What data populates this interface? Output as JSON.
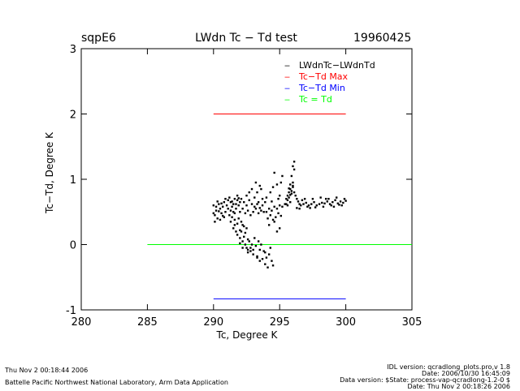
{
  "header": {
    "site": "sqpE6",
    "title": "LWdn Tc − Td test",
    "date": "19960425"
  },
  "chart_data": {
    "type": "scatter",
    "xlabel": "Tc, Degree K",
    "ylabel": "Tc−Td, Degree K",
    "xlim": [
      280,
      305
    ],
    "ylim": [
      -1,
      3
    ],
    "xticks": [
      280,
      285,
      290,
      295,
      300,
      305
    ],
    "yticks": [
      -1,
      0,
      1,
      2,
      3
    ],
    "legend": [
      {
        "label": "LWdnTc−LWdnTd",
        "color": "#000000",
        "marker": "‒"
      },
      {
        "label": "Tc−Td Max",
        "color": "#ff0000",
        "marker": "‒"
      },
      {
        "label": "Tc−Td Min",
        "color": "#0000ff",
        "marker": "‒"
      },
      {
        "label": "Tc = Td",
        "color": "#00ff00",
        "marker": "‒"
      }
    ],
    "legend_position": "top-right",
    "lines": [
      {
        "name": "Tc-Td Max",
        "color": "#ff0000",
        "x": [
          290,
          300
        ],
        "y": [
          2,
          2
        ]
      },
      {
        "name": "Tc-Td Min",
        "color": "#0000ff",
        "x": [
          290,
          300
        ],
        "y": [
          -0.83,
          -0.83
        ]
      },
      {
        "name": "Tc = Td",
        "color": "#00ff00",
        "x": [
          285,
          305
        ],
        "y": [
          0,
          0
        ]
      }
    ],
    "scatter_series": {
      "name": "LWdnTc-LWdnTd",
      "color": "#000000",
      "points": [
        [
          290.0,
          0.6
        ],
        [
          290.1,
          0.45
        ],
        [
          290.2,
          0.52
        ],
        [
          290.3,
          0.4
        ],
        [
          290.4,
          0.62
        ],
        [
          290.5,
          0.55
        ],
        [
          290.6,
          0.48
        ],
        [
          290.7,
          0.58
        ],
        [
          290.8,
          0.65
        ],
        [
          290.9,
          0.5
        ],
        [
          290.1,
          0.35
        ],
        [
          290.3,
          0.66
        ],
        [
          290.5,
          0.38
        ],
        [
          290.7,
          0.44
        ],
        [
          290.9,
          0.7
        ],
        [
          290.2,
          0.58
        ],
        [
          290.6,
          0.63
        ],
        [
          290.8,
          0.42
        ],
        [
          290.0,
          0.48
        ],
        [
          290.4,
          0.51
        ],
        [
          291.0,
          0.6
        ],
        [
          291.1,
          0.55
        ],
        [
          291.2,
          0.72
        ],
        [
          291.3,
          0.65
        ],
        [
          291.4,
          0.58
        ],
        [
          291.5,
          0.62
        ],
        [
          291.6,
          0.7
        ],
        [
          291.7,
          0.55
        ],
        [
          291.8,
          0.68
        ],
        [
          291.9,
          0.6
        ],
        [
          291.2,
          0.45
        ],
        [
          291.5,
          0.5
        ],
        [
          291.8,
          0.75
        ],
        [
          291.1,
          0.68
        ],
        [
          291.4,
          0.66
        ],
        [
          291.7,
          0.62
        ],
        [
          291.3,
          0.52
        ],
        [
          291.6,
          0.48
        ],
        [
          291.9,
          0.71
        ],
        [
          292.0,
          0.65
        ],
        [
          291.3,
          0.35
        ],
        [
          291.5,
          0.25
        ],
        [
          291.6,
          0.3
        ],
        [
          291.7,
          0.2
        ],
        [
          291.8,
          0.15
        ],
        [
          291.9,
          0.4
        ],
        [
          292.0,
          0.1
        ],
        [
          292.1,
          0.35
        ],
        [
          292.2,
          0.05
        ],
        [
          292.3,
          0.28
        ],
        [
          291.4,
          0.42
        ],
        [
          291.6,
          0.38
        ],
        [
          291.8,
          0.32
        ],
        [
          292.0,
          0.22
        ],
        [
          292.2,
          0.3
        ],
        [
          292.4,
          0.18
        ],
        [
          292.5,
          0.25
        ],
        [
          292.6,
          0.08
        ],
        [
          292.3,
          0.12
        ],
        [
          292.1,
          0.2
        ],
        [
          292.0,
          0.02
        ],
        [
          292.2,
          -0.05
        ],
        [
          292.4,
          0.0
        ],
        [
          292.5,
          -0.05
        ],
        [
          292.6,
          -0.08
        ],
        [
          292.7,
          0.05
        ],
        [
          292.8,
          -0.1
        ],
        [
          292.9,
          0.0
        ],
        [
          293.0,
          -0.08
        ],
        [
          293.1,
          0.1
        ],
        [
          292.6,
          -0.12
        ],
        [
          292.8,
          -0.05
        ],
        [
          293.0,
          -0.15
        ],
        [
          293.2,
          -0.02
        ],
        [
          293.3,
          -0.2
        ],
        [
          293.4,
          0.05
        ],
        [
          293.5,
          -0.25
        ],
        [
          293.6,
          0.0
        ],
        [
          293.8,
          -0.1
        ],
        [
          293.9,
          -0.3
        ],
        [
          293.3,
          -0.18
        ],
        [
          293.5,
          -0.08
        ],
        [
          293.7,
          -0.22
        ],
        [
          293.9,
          -0.12
        ],
        [
          294.0,
          -0.2
        ],
        [
          294.1,
          -0.35
        ],
        [
          294.3,
          -0.05
        ],
        [
          294.4,
          -0.25
        ],
        [
          294.5,
          -0.32
        ],
        [
          294.2,
          -0.15
        ],
        [
          292.0,
          0.5
        ],
        [
          292.2,
          0.55
        ],
        [
          292.4,
          0.48
        ],
        [
          292.6,
          0.52
        ],
        [
          292.8,
          0.45
        ],
        [
          293.0,
          0.5
        ],
        [
          293.2,
          0.55
        ],
        [
          293.4,
          0.48
        ],
        [
          293.6,
          0.52
        ],
        [
          293.8,
          0.5
        ],
        [
          292.5,
          0.75
        ],
        [
          292.7,
          0.8
        ],
        [
          292.9,
          0.85
        ],
        [
          293.1,
          0.72
        ],
        [
          293.3,
          0.8
        ],
        [
          293.5,
          0.9
        ],
        [
          293.7,
          0.7
        ],
        [
          293.2,
          0.95
        ],
        [
          293.4,
          0.65
        ],
        [
          293.6,
          0.85
        ],
        [
          292.1,
          0.7
        ],
        [
          292.3,
          0.65
        ],
        [
          292.5,
          0.6
        ],
        [
          292.7,
          0.68
        ],
        [
          292.9,
          0.62
        ],
        [
          293.1,
          0.58
        ],
        [
          293.3,
          0.62
        ],
        [
          293.5,
          0.56
        ],
        [
          293.7,
          0.6
        ],
        [
          293.9,
          0.65
        ],
        [
          294.0,
          0.5
        ],
        [
          294.2,
          0.55
        ],
        [
          294.4,
          0.52
        ],
        [
          294.6,
          0.58
        ],
        [
          294.8,
          0.55
        ],
        [
          295.0,
          0.6
        ],
        [
          295.2,
          0.58
        ],
        [
          295.4,
          0.62
        ],
        [
          295.6,
          0.6
        ],
        [
          295.8,
          0.65
        ],
        [
          294.1,
          0.4
        ],
        [
          294.3,
          0.45
        ],
        [
          294.5,
          0.38
        ],
        [
          294.7,
          0.42
        ],
        [
          294.9,
          0.48
        ],
        [
          295.1,
          0.44
        ],
        [
          294.2,
          0.3
        ],
        [
          294.6,
          0.35
        ],
        [
          295.0,
          0.25
        ],
        [
          294.8,
          0.2
        ],
        [
          294.0,
          0.72
        ],
        [
          294.3,
          0.8
        ],
        [
          294.5,
          0.88
        ],
        [
          294.8,
          0.92
        ],
        [
          295.0,
          0.75
        ],
        [
          295.2,
          1.05
        ],
        [
          294.6,
          1.1
        ],
        [
          295.1,
          0.95
        ],
        [
          294.9,
          0.7
        ],
        [
          294.4,
          0.66
        ],
        [
          295.5,
          0.7
        ],
        [
          295.6,
          0.75
        ],
        [
          295.7,
          0.8
        ],
        [
          295.8,
          0.85
        ],
        [
          295.9,
          0.78
        ],
        [
          296.0,
          0.9
        ],
        [
          296.1,
          1.15
        ],
        [
          296.0,
          1.2
        ],
        [
          296.1,
          1.27
        ],
        [
          295.9,
          1.05
        ],
        [
          295.6,
          0.68
        ],
        [
          295.7,
          0.72
        ],
        [
          295.8,
          0.76
        ],
        [
          295.9,
          0.82
        ],
        [
          296.0,
          0.88
        ],
        [
          295.5,
          0.62
        ],
        [
          295.8,
          0.92
        ],
        [
          296.0,
          0.95
        ],
        [
          295.7,
          0.86
        ],
        [
          296.1,
          0.8
        ],
        [
          296.2,
          0.75
        ],
        [
          296.3,
          0.7
        ],
        [
          296.4,
          0.66
        ],
        [
          296.5,
          0.62
        ],
        [
          296.6,
          0.6
        ],
        [
          296.8,
          0.62
        ],
        [
          297.0,
          0.64
        ],
        [
          297.2,
          0.6
        ],
        [
          297.4,
          0.62
        ],
        [
          297.6,
          0.65
        ],
        [
          297.8,
          0.6
        ],
        [
          298.0,
          0.62
        ],
        [
          298.2,
          0.64
        ],
        [
          298.4,
          0.63
        ],
        [
          298.6,
          0.66
        ],
        [
          298.8,
          0.62
        ],
        [
          299.0,
          0.65
        ],
        [
          299.2,
          0.68
        ],
        [
          299.4,
          0.63
        ],
        [
          299.6,
          0.66
        ],
        [
          299.8,
          0.64
        ],
        [
          300.0,
          0.67
        ],
        [
          296.5,
          0.55
        ],
        [
          297.1,
          0.58
        ],
        [
          297.7,
          0.57
        ],
        [
          298.3,
          0.58
        ],
        [
          298.9,
          0.6
        ],
        [
          299.5,
          0.61
        ],
        [
          296.9,
          0.7
        ],
        [
          297.5,
          0.7
        ],
        [
          298.1,
          0.72
        ],
        [
          298.7,
          0.7
        ],
        [
          299.3,
          0.72
        ],
        [
          299.9,
          0.7
        ],
        [
          296.3,
          0.56
        ],
        [
          297.3,
          0.56
        ],
        [
          298.5,
          0.7
        ],
        [
          299.1,
          0.58
        ],
        [
          299.7,
          0.6
        ],
        [
          296.7,
          0.68
        ]
      ]
    }
  },
  "footer": {
    "left_line1": "Thu Nov  2 00:18:44 2006",
    "left_line2": "Battelle Pacific Northwest National Laboratory, Arm Data Application",
    "right_line1": "IDL version: qcradlong_plots.pro,v 1.8",
    "right_line2": "Date: 2006/10/30 16:45:09",
    "right_line3": "Data version: $State: process-vap-qcradlong-1.2-0 $",
    "right_line4": "Date: Thu Nov  2 00:18:26 2006"
  }
}
